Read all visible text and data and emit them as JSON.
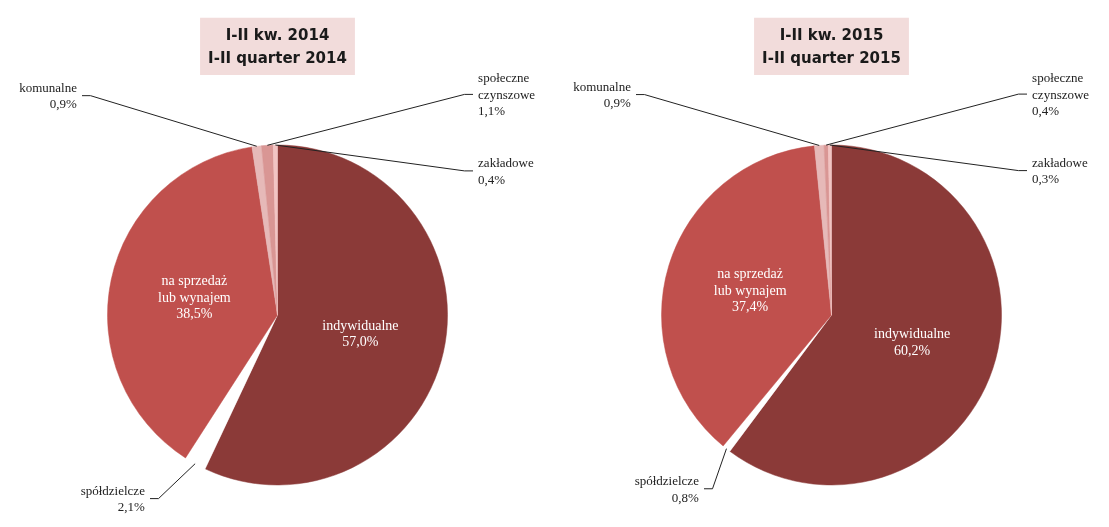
{
  "chart_data": [
    {
      "type": "pie",
      "title": "I-II kw. 2014",
      "subtitle": "I-II quarter 2014",
      "categories": [
        "indywidualne",
        "spółdzielcze",
        "na sprzedaż lub wynajem",
        "komunalne",
        "społeczne czynszowe",
        "zakładowe"
      ],
      "values": [
        57.0,
        2.1,
        38.5,
        0.9,
        1.1,
        0.4
      ],
      "value_labels": [
        "57,0%",
        "2,1%",
        "38,5%",
        "0,9%",
        "1,1%",
        "0,4%"
      ],
      "colors": [
        "#8b3a38",
        "#ffffff",
        "#c0504d",
        "#e6b9b8",
        "#d99694",
        "#f2c4c3"
      ]
    },
    {
      "type": "pie",
      "title": "I-II kw. 2015",
      "subtitle": "I-II quarter 2015",
      "categories": [
        "indywidualne",
        "spółdzielcze",
        "na sprzedaż lub wynajem",
        "komunalne",
        "społeczne czynszowe",
        "zakładowe"
      ],
      "values": [
        60.2,
        0.8,
        37.4,
        0.9,
        0.4,
        0.3
      ],
      "value_labels": [
        "60,2%",
        "0,8%",
        "37,4%",
        "0,9%",
        "0,4%",
        "0,3%"
      ],
      "colors": [
        "#8b3a38",
        "#ffffff",
        "#c0504d",
        "#e6b9b8",
        "#d99694",
        "#f2c4c3"
      ]
    }
  ]
}
